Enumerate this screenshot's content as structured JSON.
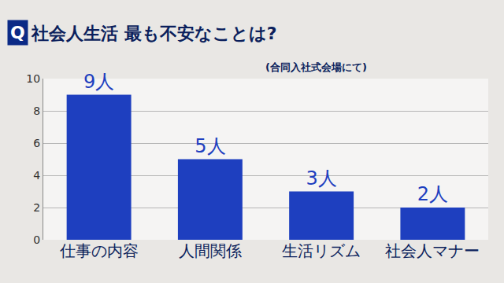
{
  "chart_data": {
    "type": "bar",
    "title": "社会人生活 最も不安なことは?",
    "subtitle": "(合同入社式会場にて)",
    "annotations": [
      {
        "text": "Q"
      }
    ],
    "categories": [
      "仕事の内容",
      "人間関係",
      "生活リズム",
      "社会人マナー"
    ],
    "values": [
      9,
      5,
      3,
      2
    ],
    "value_labels": [
      "9人",
      "5人",
      "3人",
      "2人"
    ],
    "data_labels": true,
    "color": "#1e3fbf",
    "ylim": [
      0,
      10
    ],
    "yticks": [
      0,
      2,
      4,
      6,
      8,
      10
    ],
    "grid": true
  }
}
